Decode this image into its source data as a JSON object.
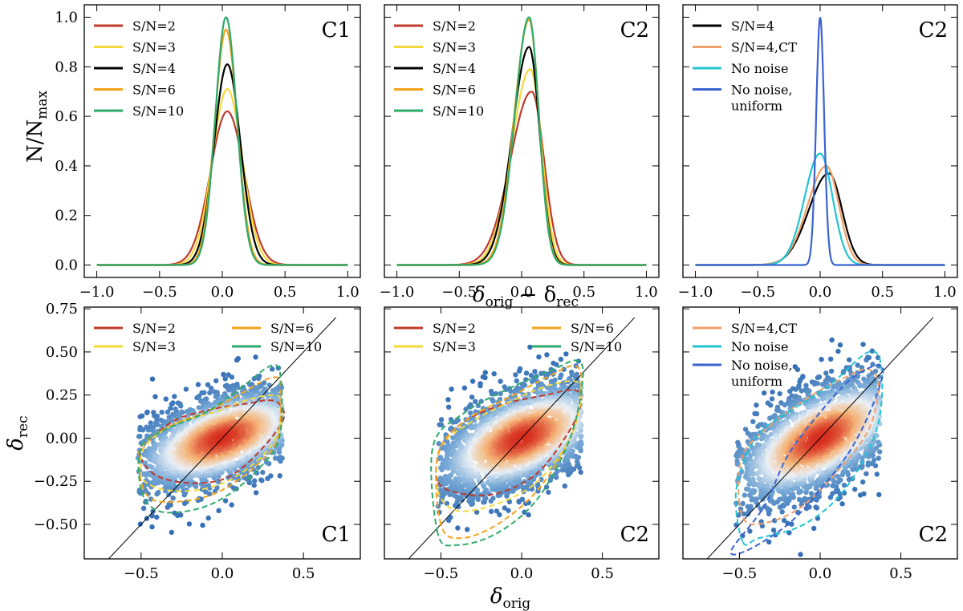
{
  "figure": {
    "top_xlabel_main": "δ",
    "top_xlabel_sub1": "orig",
    "top_xlabel_mid": " − δ",
    "top_xlabel_sub2": "rec",
    "top_ylabel_main": "N/N",
    "top_ylabel_sub": "max",
    "bottom_xlabel_main": "δ",
    "bottom_xlabel_sub": "orig",
    "bottom_ylabel_main": "δ",
    "bottom_ylabel_sub": "rec"
  },
  "colors": {
    "sn2": "#c0392b",
    "sn3": "#f4d93a",
    "sn4": "#000000",
    "sn6": "#f5a21b",
    "sn10": "#2eaa6a",
    "sn4ct": "#f0a06a",
    "nonoise": "#20c4d2",
    "nonoise_uniform": "#3b63d0"
  },
  "chart_data": [
    {
      "type": "line",
      "panel_label": "C1",
      "xlim": [
        -1.1,
        1.1
      ],
      "ylim": [
        -0.05,
        1.05
      ],
      "xticks": [
        -1.0,
        -0.5,
        0.0,
        0.5,
        1.0
      ],
      "yticks": [
        0.0,
        0.2,
        0.4,
        0.6,
        0.8,
        1.0
      ],
      "xtick_labels": [
        "−1.0",
        "−0.5",
        "0.0",
        "0.5",
        "1.0"
      ],
      "ytick_labels": [
        "0.0",
        "0.2",
        "0.4",
        "0.6",
        "0.8",
        "1.0"
      ],
      "legend_position": "top-left",
      "series": [
        {
          "name": "S/N=2",
          "color_key": "sn2",
          "peak": 0.62,
          "mu": 0.04,
          "sigma_left": 0.135,
          "sigma_right": 0.135
        },
        {
          "name": "S/N=3",
          "color_key": "sn3",
          "peak": 0.71,
          "mu": 0.04,
          "sigma_left": 0.12,
          "sigma_right": 0.12
        },
        {
          "name": "S/N=4",
          "color_key": "sn4",
          "peak": 0.81,
          "mu": 0.04,
          "sigma_left": 0.105,
          "sigma_right": 0.105
        },
        {
          "name": "S/N=6",
          "color_key": "sn6",
          "peak": 0.95,
          "mu": 0.03,
          "sigma_left": 0.09,
          "sigma_right": 0.09
        },
        {
          "name": "S/N=10",
          "color_key": "sn10",
          "peak": 1.0,
          "mu": 0.03,
          "sigma_left": 0.085,
          "sigma_right": 0.085
        }
      ]
    },
    {
      "type": "line",
      "panel_label": "C2",
      "xlim": [
        -1.1,
        1.1
      ],
      "ylim": [
        -0.05,
        1.05
      ],
      "xticks": [
        -1.0,
        -0.5,
        0.0,
        0.5,
        1.0
      ],
      "yticks": [
        0.0,
        0.2,
        0.4,
        0.6,
        0.8,
        1.0
      ],
      "xtick_labels": [
        "−1.0",
        "−0.5",
        "0.0",
        "0.5",
        "1.0"
      ],
      "ytick_labels": [],
      "legend_position": "top-left",
      "series": [
        {
          "name": "S/N=2",
          "color_key": "sn2",
          "peak": 0.7,
          "mu": 0.08,
          "sigma_left": 0.17,
          "sigma_right": 0.1
        },
        {
          "name": "S/N=3",
          "color_key": "sn3",
          "peak": 0.79,
          "mu": 0.07,
          "sigma_left": 0.15,
          "sigma_right": 0.09
        },
        {
          "name": "S/N=4",
          "color_key": "sn4",
          "peak": 0.88,
          "mu": 0.06,
          "sigma_left": 0.135,
          "sigma_right": 0.085
        },
        {
          "name": "S/N=6",
          "color_key": "sn6",
          "peak": 0.99,
          "mu": 0.06,
          "sigma_left": 0.12,
          "sigma_right": 0.08
        },
        {
          "name": "S/N=10",
          "color_key": "sn10",
          "peak": 1.0,
          "mu": 0.06,
          "sigma_left": 0.115,
          "sigma_right": 0.078
        }
      ]
    },
    {
      "type": "line",
      "panel_label": "C2",
      "xlim": [
        -1.1,
        1.1
      ],
      "ylim": [
        -0.05,
        1.05
      ],
      "xticks": [
        -1.0,
        -0.5,
        0.0,
        0.5,
        1.0
      ],
      "yticks": [
        0.0,
        0.2,
        0.4,
        0.6,
        0.8,
        1.0
      ],
      "xtick_labels": [
        "−1.0",
        "−0.5",
        "0.0",
        "0.5",
        "1.0"
      ],
      "ytick_labels": [],
      "legend_position": "top-left",
      "series": [
        {
          "name": "S/N=4",
          "color_key": "sn4",
          "peak": 0.37,
          "mu": 0.07,
          "sigma_left": 0.16,
          "sigma_right": 0.105
        },
        {
          "name": "S/N=4,CT",
          "color_key": "sn4ct",
          "peak": 0.4,
          "mu": 0.05,
          "sigma_left": 0.15,
          "sigma_right": 0.1
        },
        {
          "name": "No noise",
          "color_key": "nonoise",
          "peak": 0.45,
          "mu": 0.0,
          "sigma_left": 0.125,
          "sigma_right": 0.1
        },
        {
          "name_lines": [
            "No noise,",
            "uniform"
          ],
          "color_key": "nonoise_uniform",
          "peak": 1.0,
          "mu": 0.0,
          "sigma_left": 0.032,
          "sigma_right": 0.032
        }
      ]
    },
    {
      "type": "scatter",
      "panel_label": "C1",
      "xlim": [
        -0.85,
        0.85
      ],
      "ylim": [
        -0.7,
        0.76
      ],
      "xticks": [
        -0.5,
        0.0,
        0.5
      ],
      "yticks": [
        -0.5,
        -0.25,
        0.0,
        0.25,
        0.5,
        0.75
      ],
      "xtick_labels": [
        "−0.5",
        "0.0",
        "0.5"
      ],
      "ytick_labels": [
        "−0.50",
        "−0.25",
        "0.00",
        "0.25",
        "0.50",
        "0.75"
      ],
      "legend_position": "top-left",
      "legend_columns": 2,
      "density": {
        "cx": 0.0,
        "cy": 0.0,
        "sx": 0.3,
        "sy": 0.16,
        "rho": 0.55
      },
      "identity_line": [
        [
          -0.7,
          -0.7
        ],
        [
          0.7,
          0.7
        ]
      ],
      "series": [
        {
          "name": "S/N=2",
          "color_key": "sn2",
          "contour": [
            [
              -0.5,
              -0.12
            ],
            [
              -0.48,
              -0.05
            ],
            [
              -0.3,
              0.1
            ],
            [
              -0.05,
              0.17
            ],
            [
              0.15,
              0.2
            ],
            [
              0.28,
              0.22
            ],
            [
              0.35,
              0.2
            ],
            [
              0.38,
              0.12
            ],
            [
              0.3,
              0.0
            ],
            [
              0.15,
              -0.15
            ],
            [
              0.0,
              -0.24
            ],
            [
              -0.2,
              -0.26
            ],
            [
              -0.4,
              -0.22
            ]
          ]
        },
        {
          "name": "S/N=3",
          "color_key": "sn3",
          "contour": [
            [
              -0.5,
              -0.18
            ],
            [
              -0.48,
              -0.05
            ],
            [
              -0.3,
              0.08
            ],
            [
              -0.05,
              0.15
            ],
            [
              0.15,
              0.22
            ],
            [
              0.3,
              0.25
            ],
            [
              0.36,
              0.22
            ],
            [
              0.35,
              0.05
            ],
            [
              0.25,
              -0.1
            ],
            [
              0.05,
              -0.24
            ],
            [
              -0.15,
              -0.3
            ],
            [
              -0.35,
              -0.3
            ],
            [
              -0.48,
              -0.25
            ]
          ]
        },
        {
          "name": "S/N=6",
          "color_key": "sn6",
          "contour": [
            [
              -0.5,
              -0.25
            ],
            [
              -0.5,
              -0.05
            ],
            [
              -0.3,
              0.08
            ],
            [
              -0.1,
              0.15
            ],
            [
              0.1,
              0.25
            ],
            [
              0.3,
              0.35
            ],
            [
              0.36,
              0.3
            ],
            [
              0.34,
              0.0
            ],
            [
              0.22,
              -0.15
            ],
            [
              0.0,
              -0.3
            ],
            [
              -0.2,
              -0.36
            ],
            [
              -0.42,
              -0.36
            ]
          ]
        },
        {
          "name": "S/N=10",
          "color_key": "sn10",
          "contour": [
            [
              -0.5,
              -0.3
            ],
            [
              -0.5,
              -0.05
            ],
            [
              -0.35,
              0.05
            ],
            [
              -0.1,
              0.15
            ],
            [
              0.1,
              0.28
            ],
            [
              0.3,
              0.42
            ],
            [
              0.36,
              0.35
            ],
            [
              0.35,
              0.0
            ],
            [
              0.2,
              -0.2
            ],
            [
              0.0,
              -0.35
            ],
            [
              -0.2,
              -0.42
            ],
            [
              -0.4,
              -0.42
            ]
          ]
        }
      ]
    },
    {
      "type": "scatter",
      "panel_label": "C2",
      "xlim": [
        -0.85,
        0.85
      ],
      "ylim": [
        -0.7,
        0.76
      ],
      "xticks": [
        -0.5,
        0.0,
        0.5
      ],
      "yticks": [
        -0.5,
        -0.25,
        0.0,
        0.25,
        0.5,
        0.75
      ],
      "xtick_labels": [
        "−0.5",
        "0.0",
        "0.5"
      ],
      "ytick_labels": [],
      "legend_position": "top-left",
      "legend_columns": 2,
      "density": {
        "cx": 0.0,
        "cy": 0.0,
        "sx": 0.3,
        "sy": 0.18,
        "rho": 0.55
      },
      "identity_line": [
        [
          -0.7,
          -0.7
        ],
        [
          0.7,
          0.7
        ]
      ],
      "series": [
        {
          "name": "S/N=2",
          "color_key": "sn2",
          "contour": [
            [
              -0.52,
              -0.25
            ],
            [
              -0.5,
              -0.05
            ],
            [
              -0.35,
              0.1
            ],
            [
              -0.1,
              0.2
            ],
            [
              0.15,
              0.25
            ],
            [
              0.32,
              0.28
            ],
            [
              0.37,
              0.22
            ],
            [
              0.3,
              0.05
            ],
            [
              0.1,
              -0.2
            ],
            [
              -0.15,
              -0.32
            ],
            [
              -0.38,
              -0.32
            ]
          ]
        },
        {
          "name": "S/N=3",
          "color_key": "sn3",
          "contour": [
            [
              -0.52,
              -0.3
            ],
            [
              -0.5,
              -0.05
            ],
            [
              -0.3,
              0.1
            ],
            [
              -0.05,
              0.22
            ],
            [
              0.15,
              0.3
            ],
            [
              0.33,
              0.33
            ],
            [
              0.37,
              0.25
            ],
            [
              0.3,
              0.0
            ],
            [
              0.1,
              -0.25
            ],
            [
              -0.15,
              -0.38
            ],
            [
              -0.4,
              -0.42
            ]
          ]
        },
        {
          "name": "S/N=6",
          "color_key": "sn6",
          "contour": [
            [
              -0.5,
              -0.5
            ],
            [
              -0.52,
              -0.1
            ],
            [
              -0.35,
              0.1
            ],
            [
              -0.05,
              0.25
            ],
            [
              0.15,
              0.35
            ],
            [
              0.33,
              0.42
            ],
            [
              0.37,
              0.3
            ],
            [
              0.3,
              0.0
            ],
            [
              0.1,
              -0.3
            ],
            [
              -0.15,
              -0.5
            ],
            [
              -0.38,
              -0.58
            ]
          ]
        },
        {
          "name": "S/N=10",
          "color_key": "sn10",
          "contour": [
            [
              -0.52,
              -0.55
            ],
            [
              -0.55,
              -0.05
            ],
            [
              -0.35,
              0.15
            ],
            [
              -0.05,
              0.3
            ],
            [
              0.2,
              0.4
            ],
            [
              0.34,
              0.45
            ],
            [
              0.38,
              0.35
            ],
            [
              0.3,
              0.0
            ],
            [
              0.1,
              -0.35
            ],
            [
              -0.15,
              -0.55
            ],
            [
              -0.4,
              -0.62
            ]
          ]
        }
      ]
    },
    {
      "type": "scatter",
      "panel_label": "C2",
      "xlim": [
        -0.85,
        0.85
      ],
      "ylim": [
        -0.7,
        0.76
      ],
      "xticks": [
        -0.5,
        0.0,
        0.5
      ],
      "yticks": [
        -0.5,
        -0.25,
        0.0,
        0.25,
        0.5,
        0.75
      ],
      "xtick_labels": [
        "−0.5",
        "0.0",
        "0.5"
      ],
      "ytick_labels": [],
      "legend_position": "top-left",
      "legend_columns": 1,
      "density": {
        "cx": 0.0,
        "cy": 0.0,
        "sx": 0.3,
        "sy": 0.2,
        "rho": 0.62
      },
      "identity_line": [
        [
          -0.7,
          -0.7
        ],
        [
          0.7,
          0.7
        ]
      ],
      "series": [
        {
          "name": "S/N=4,CT",
          "color_key": "sn4ct",
          "contour": [
            [
              -0.5,
              -0.38
            ],
            [
              -0.48,
              -0.1
            ],
            [
              -0.3,
              0.08
            ],
            [
              -0.05,
              0.25
            ],
            [
              0.15,
              0.35
            ],
            [
              0.3,
              0.4
            ],
            [
              0.36,
              0.3
            ],
            [
              0.3,
              0.05
            ],
            [
              0.1,
              -0.2
            ],
            [
              -0.15,
              -0.42
            ],
            [
              -0.42,
              -0.5
            ]
          ]
        },
        {
          "name": "No noise",
          "color_key": "nonoise",
          "contour": [
            [
              -0.48,
              -0.6
            ],
            [
              -0.52,
              -0.3
            ],
            [
              -0.4,
              0.0
            ],
            [
              -0.2,
              0.15
            ],
            [
              0.05,
              0.3
            ],
            [
              0.3,
              0.5
            ],
            [
              0.38,
              0.4
            ],
            [
              0.35,
              0.05
            ],
            [
              0.15,
              -0.3
            ],
            [
              -0.1,
              -0.5
            ],
            [
              -0.38,
              -0.58
            ]
          ]
        },
        {
          "name_lines": [
            "No noise,",
            "uniform"
          ],
          "color_key": "nonoise_uniform",
          "contour": [
            [
              -0.55,
              -0.65
            ],
            [
              -0.35,
              -0.4
            ],
            [
              -0.2,
              -0.1
            ],
            [
              0.0,
              0.15
            ],
            [
              0.2,
              0.35
            ],
            [
              0.38,
              0.42
            ],
            [
              0.35,
              0.25
            ],
            [
              0.2,
              -0.05
            ],
            [
              0.0,
              -0.3
            ],
            [
              -0.2,
              -0.5
            ],
            [
              -0.45,
              -0.65
            ]
          ]
        }
      ]
    }
  ]
}
